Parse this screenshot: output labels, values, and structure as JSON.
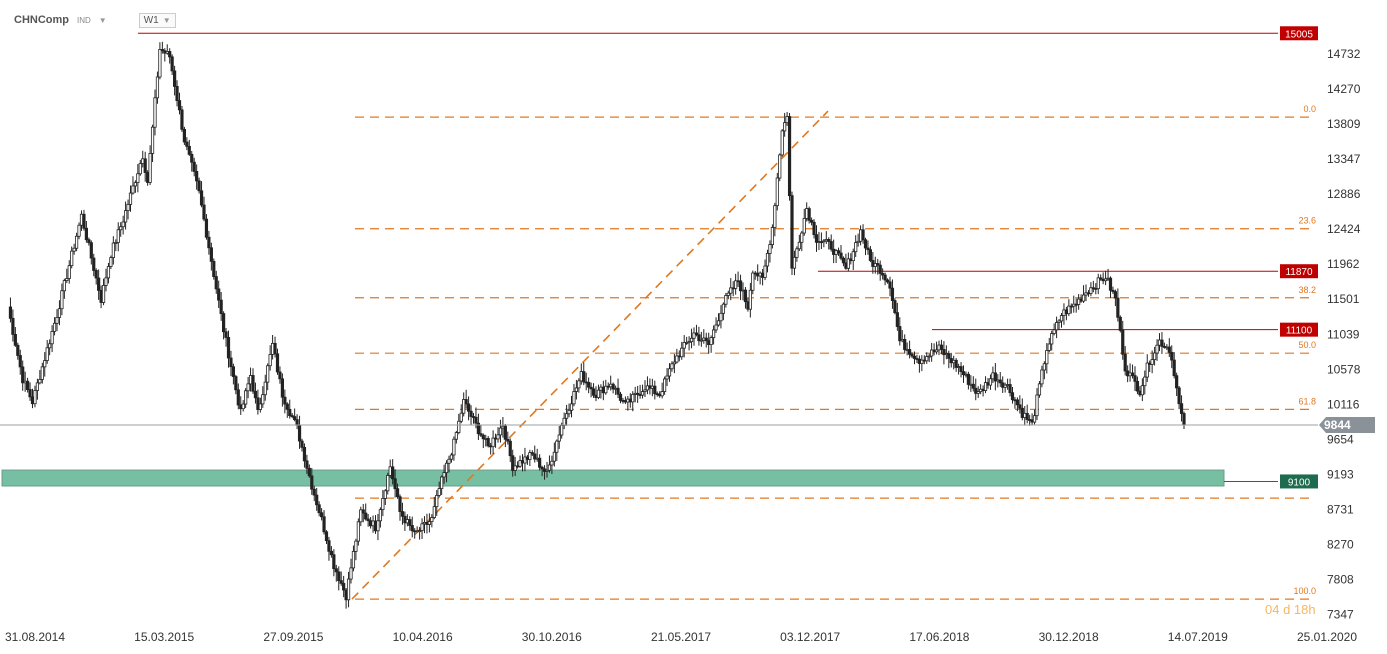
{
  "header": {
    "symbol": "CHNComp",
    "badge": "IND",
    "badge_caret": "▼",
    "timeframe": "W1",
    "timeframe_caret": "▼"
  },
  "chart_data": {
    "type": "candlestick",
    "symbol": "CHNComp",
    "timeframe": "W1",
    "ylim": [
      7200,
      15150
    ],
    "y_ticks": [
      14732,
      14270,
      13809,
      13347,
      12886,
      12424,
      11962,
      11501,
      11039,
      10578,
      10116,
      9654,
      9193,
      8731,
      8270,
      7808,
      7347
    ],
    "x_ticks": [
      "31.08.2014",
      "15.03.2015",
      "27.09.2015",
      "10.04.2016",
      "30.10.2016",
      "21.05.2017",
      "03.12.2017",
      "17.06.2018",
      "30.12.2018",
      "14.07.2019",
      "25.01.2020"
    ],
    "current_price": "9844",
    "current_price_color": "#8a9199",
    "price_labels": [
      {
        "label": "15005",
        "value": 15005,
        "color": "#c00000"
      },
      {
        "label": "11870",
        "value": 11870,
        "color": "#c00000"
      },
      {
        "label": "11100",
        "value": 11100,
        "color": "#c00000"
      },
      {
        "label": "9100",
        "value": 9100,
        "color": "#1e6b4f"
      }
    ],
    "fibonacci": {
      "color": "#e07820",
      "levels": [
        {
          "label": "0.0",
          "value": 13900
        },
        {
          "label": "23.6",
          "value": 12430
        },
        {
          "label": "38.2",
          "value": 11520
        },
        {
          "label": "50.0",
          "value": 10790
        },
        {
          "label": "61.8",
          "value": 10050
        },
        {
          "label": "",
          "value": 8880
        },
        {
          "label": "100.0",
          "value": 7550
        }
      ]
    },
    "support_zone": {
      "from": 9040,
      "to": 9250,
      "color": "#2e9d73"
    },
    "watermark": "04 d 18h",
    "pivots": [
      [
        0,
        11400
      ],
      [
        6,
        10450
      ],
      [
        10,
        10150
      ],
      [
        20,
        11300
      ],
      [
        30,
        12600
      ],
      [
        38,
        11500
      ],
      [
        42,
        12100
      ],
      [
        47,
        12550
      ],
      [
        55,
        13400
      ],
      [
        57,
        13050
      ],
      [
        62,
        14800
      ],
      [
        66,
        14700
      ],
      [
        72,
        13600
      ],
      [
        78,
        12900
      ],
      [
        82,
        12200
      ],
      [
        88,
        11100
      ],
      [
        95,
        10000
      ],
      [
        99,
        10500
      ],
      [
        102,
        10000
      ],
      [
        108,
        10900
      ],
      [
        112,
        10250
      ],
      [
        118,
        9800
      ],
      [
        124,
        9050
      ],
      [
        128,
        8600
      ],
      [
        133,
        8000
      ],
      [
        138,
        7600
      ],
      [
        144,
        8700
      ],
      [
        150,
        8500
      ],
      [
        156,
        9300
      ],
      [
        160,
        8700
      ],
      [
        166,
        8400
      ],
      [
        173,
        8600
      ],
      [
        176,
        9000
      ],
      [
        182,
        9600
      ],
      [
        186,
        10150
      ],
      [
        190,
        9900
      ],
      [
        196,
        9550
      ],
      [
        202,
        9850
      ],
      [
        206,
        9300
      ],
      [
        214,
        9450
      ],
      [
        220,
        9200
      ],
      [
        226,
        9850
      ],
      [
        234,
        10500
      ],
      [
        240,
        10250
      ],
      [
        246,
        10400
      ],
      [
        252,
        10100
      ],
      [
        260,
        10350
      ],
      [
        266,
        10250
      ],
      [
        272,
        10700
      ],
      [
        280,
        11050
      ],
      [
        286,
        10900
      ],
      [
        292,
        11450
      ],
      [
        298,
        11750
      ],
      [
        302,
        11400
      ],
      [
        304,
        11900
      ],
      [
        308,
        11750
      ],
      [
        312,
        12450
      ],
      [
        316,
        13750
      ],
      [
        318,
        13900
      ],
      [
        320,
        11900
      ],
      [
        326,
        12700
      ],
      [
        330,
        12300
      ],
      [
        336,
        12200
      ],
      [
        342,
        11900
      ],
      [
        348,
        12400
      ],
      [
        352,
        12000
      ],
      [
        356,
        11900
      ],
      [
        360,
        11700
      ],
      [
        364,
        10950
      ],
      [
        372,
        10700
      ],
      [
        380,
        10850
      ],
      [
        388,
        10600
      ],
      [
        396,
        10250
      ],
      [
        402,
        10500
      ],
      [
        408,
        10350
      ],
      [
        414,
        10000
      ],
      [
        418,
        9850
      ],
      [
        424,
        10850
      ],
      [
        430,
        11300
      ],
      [
        436,
        11450
      ],
      [
        440,
        11600
      ],
      [
        444,
        11700
      ],
      [
        448,
        11800
      ],
      [
        452,
        11500
      ],
      [
        456,
        10600
      ],
      [
        462,
        10300
      ],
      [
        466,
        10700
      ],
      [
        470,
        10950
      ],
      [
        474,
        10850
      ],
      [
        476,
        10550
      ],
      [
        478,
        10100
      ],
      [
        480,
        9844
      ]
    ]
  }
}
